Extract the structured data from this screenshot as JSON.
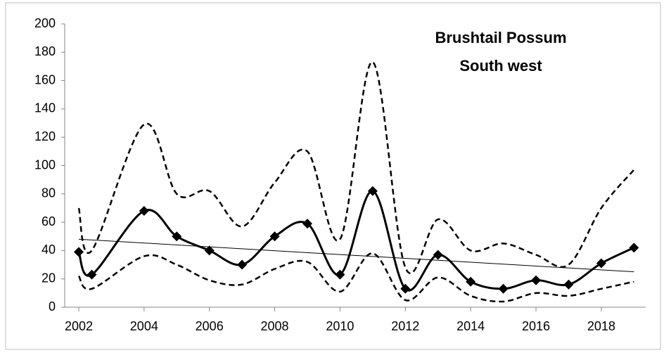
{
  "chart_data": {
    "type": "line",
    "title": [
      "Brushtail Possum",
      "South west"
    ],
    "x": [
      2002,
      2002.4,
      2004,
      2005,
      2006,
      2007,
      2008,
      2009,
      2010,
      2011,
      2012,
      2013,
      2014,
      2015,
      2016,
      2017,
      2018,
      2019
    ],
    "series": [
      {
        "color": "#000000",
        "dash": false,
        "markers": true,
        "values": [
          39,
          23,
          68,
          50,
          40,
          30,
          50,
          59,
          23,
          82,
          13,
          37,
          18,
          13,
          19,
          16,
          31,
          42
        ]
      },
      {
        "color": "#000000",
        "dash": true,
        "markers": false,
        "values": [
          70,
          40,
          129,
          80,
          82,
          57,
          88,
          110,
          48,
          173,
          28,
          62,
          40,
          45,
          37,
          30,
          70,
          97
        ]
      },
      {
        "color": "#000000",
        "dash": true,
        "markers": false,
        "values": [
          22,
          13,
          36,
          30,
          19,
          16,
          27,
          32,
          11,
          38,
          5,
          21,
          8,
          4,
          10,
          8,
          13,
          18
        ]
      }
    ],
    "trendline": {
      "color": "#000000",
      "x": [
        2002,
        2019
      ],
      "values": [
        48,
        25
      ]
    },
    "xlim": [
      2001.57,
      2019.36
    ],
    "xticks": [
      2002,
      2004,
      2006,
      2008,
      2010,
      2012,
      2014,
      2016,
      2018
    ],
    "ylim": [
      0,
      200
    ],
    "yticks": [
      0,
      20,
      40,
      60,
      80,
      100,
      120,
      140,
      160,
      180,
      200
    ],
    "grid": false,
    "smooth": true
  }
}
